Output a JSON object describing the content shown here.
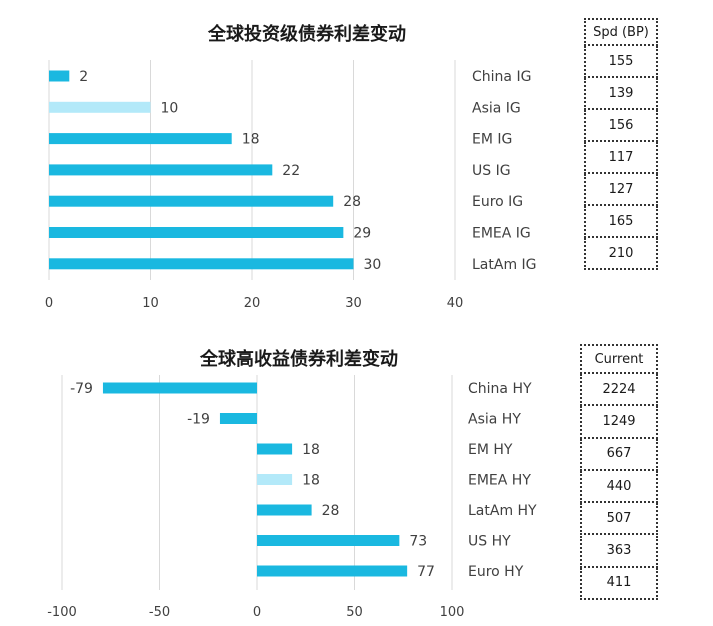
{
  "chart_data": [
    {
      "type": "bar",
      "orientation": "horizontal",
      "title": "全球投资级债券利差变动",
      "categories": [
        "China IG",
        "Asia IG",
        "EM IG",
        "US IG",
        "Euro IG",
        "EMEA IG",
        "LatAm IG"
      ],
      "values": [
        2,
        10,
        18,
        22,
        28,
        29,
        30
      ],
      "highlight": [
        "Asia IG"
      ],
      "xlim": [
        0,
        40
      ],
      "xticks": [
        0,
        10,
        20,
        30,
        40
      ],
      "grid": true,
      "colors": {
        "bar": "#1ab8e0",
        "highlight": "#b3e9f9"
      },
      "table": {
        "header": "Spd (BP)",
        "values": [
          "155",
          "139",
          "156",
          "117",
          "127",
          "165",
          "210"
        ]
      }
    },
    {
      "type": "bar",
      "orientation": "horizontal",
      "title": "全球高收益债券利差变动",
      "categories": [
        "China HY",
        "Asia HY",
        "EM HY",
        "EMEA HY",
        "LatAm HY",
        "US HY",
        "Euro HY"
      ],
      "values": [
        -79,
        -19,
        18,
        18,
        28,
        73,
        77
      ],
      "highlight": [
        "EMEA HY"
      ],
      "xlim": [
        -100,
        100
      ],
      "xticks": [
        -100,
        -50,
        0,
        50,
        100
      ],
      "grid": true,
      "colors": {
        "bar": "#1ab8e0",
        "highlight": "#b3e9f9"
      },
      "table": {
        "header": "Current",
        "values": [
          "2224",
          "1249",
          "667",
          "440",
          "507",
          "363",
          "411"
        ]
      }
    }
  ]
}
